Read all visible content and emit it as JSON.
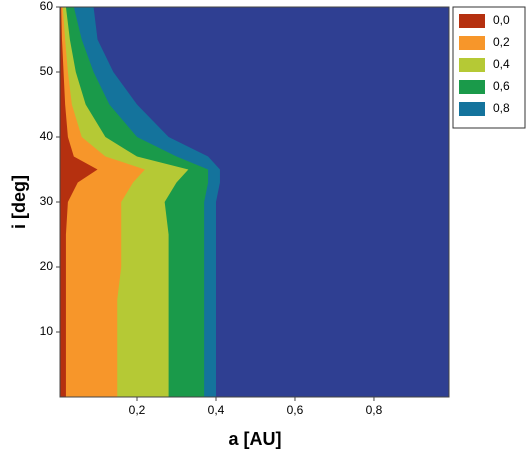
{
  "chart_data": {
    "type": "contour",
    "x_label": "a [AU]",
    "y_label": "i [deg]",
    "xlim": [
      0.005,
      0.99
    ],
    "ylim": [
      0,
      60
    ],
    "xticks": [
      {
        "value": 0.2,
        "label": "0,2"
      },
      {
        "value": 0.4,
        "label": "0,4"
      },
      {
        "value": 0.6,
        "label": "0,6"
      },
      {
        "value": 0.8,
        "label": "0,8"
      }
    ],
    "yticks": [
      10,
      20,
      30,
      40,
      50,
      60
    ],
    "background_color": "#2f3f92",
    "legend": "outside-top-right",
    "y": [
      0,
      5,
      10,
      15,
      20,
      25,
      30,
      33,
      35,
      37,
      40,
      45,
      50,
      55,
      60
    ],
    "series": [
      {
        "name": "0,0",
        "color": "#b5300f",
        "values": [
          0.02,
          0.02,
          0.02,
          0.02,
          0.02,
          0.02,
          0.025,
          0.05,
          0.1,
          0.04,
          0.025,
          0.018,
          0.014,
          0.01,
          0.008
        ]
      },
      {
        "name": "0,2",
        "color": "#f7962a",
        "values": [
          0.15,
          0.15,
          0.15,
          0.15,
          0.16,
          0.16,
          0.16,
          0.19,
          0.22,
          0.12,
          0.06,
          0.035,
          0.025,
          0.018,
          0.012
        ]
      },
      {
        "name": "0,4",
        "color": "#b5c935",
        "values": [
          0.28,
          0.28,
          0.28,
          0.28,
          0.28,
          0.28,
          0.27,
          0.3,
          0.33,
          0.2,
          0.12,
          0.07,
          0.045,
          0.03,
          0.02
        ]
      },
      {
        "name": "0,6",
        "color": "#1a9a4a",
        "values": [
          0.37,
          0.37,
          0.37,
          0.37,
          0.37,
          0.37,
          0.37,
          0.38,
          0.38,
          0.3,
          0.2,
          0.13,
          0.09,
          0.06,
          0.04
        ]
      },
      {
        "name": "0,8",
        "color": "#14739c",
        "values": [
          0.4,
          0.4,
          0.4,
          0.4,
          0.4,
          0.4,
          0.4,
          0.41,
          0.41,
          0.38,
          0.28,
          0.2,
          0.14,
          0.1,
          0.09
        ]
      }
    ]
  }
}
